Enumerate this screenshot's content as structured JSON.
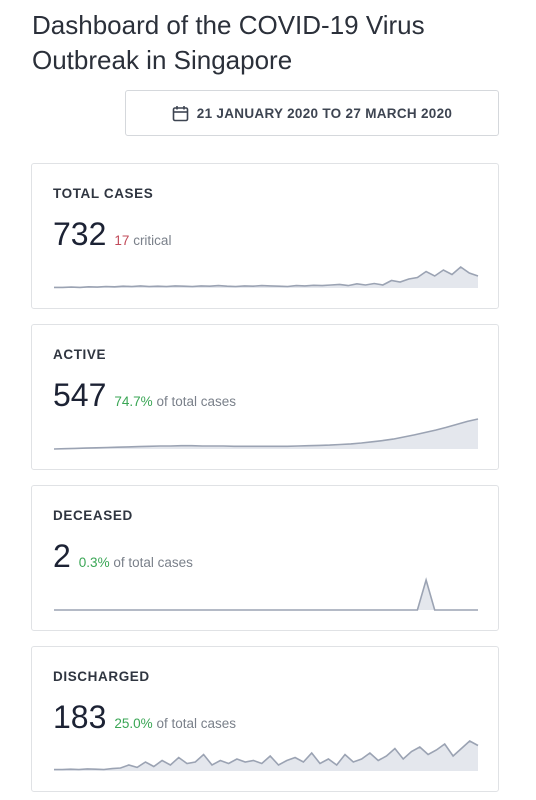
{
  "page": {
    "title": "Dashboard of the COVID-19 Virus Outbreak in Singapore"
  },
  "date_range": {
    "icon": "calendar-icon",
    "label": "21 JANUARY 2020 TO 27 MARCH 2020"
  },
  "cards": {
    "total": {
      "label": "TOTAL CASES",
      "value": "732",
      "sub_highlight": "17",
      "sub_text": "critical",
      "trend": [
        0.02,
        0.02,
        0.03,
        0.02,
        0.04,
        0.03,
        0.05,
        0.04,
        0.06,
        0.05,
        0.07,
        0.05,
        0.06,
        0.05,
        0.07,
        0.06,
        0.05,
        0.07,
        0.06,
        0.08,
        0.06,
        0.05,
        0.07,
        0.06,
        0.08,
        0.07,
        0.06,
        0.05,
        0.08,
        0.07,
        0.09,
        0.08,
        0.1,
        0.12,
        0.08,
        0.14,
        0.1,
        0.15,
        0.1,
        0.25,
        0.2,
        0.3,
        0.35,
        0.55,
        0.4,
        0.6,
        0.45,
        0.7,
        0.5,
        0.4
      ]
    },
    "active": {
      "label": "ACTIVE",
      "value": "547",
      "sub_highlight": "74.7%",
      "sub_text": "of total cases",
      "trend": [
        0.0,
        0.01,
        0.02,
        0.03,
        0.04,
        0.05,
        0.06,
        0.07,
        0.08,
        0.09,
        0.1,
        0.1,
        0.11,
        0.11,
        0.1,
        0.1,
        0.1,
        0.09,
        0.09,
        0.09,
        0.09,
        0.09,
        0.09,
        0.1,
        0.11,
        0.12,
        0.13,
        0.15,
        0.17,
        0.2,
        0.24,
        0.28,
        0.33,
        0.4,
        0.47,
        0.55,
        0.63,
        0.72,
        0.82,
        0.92,
        1.0
      ]
    },
    "deceased": {
      "label": "DECEASED",
      "value": "2",
      "sub_highlight": "0.3%",
      "sub_text": "of total cases",
      "trend": [
        0,
        0,
        0,
        0,
        0,
        0,
        0,
        0,
        0,
        0,
        0,
        0,
        0,
        0,
        0,
        0,
        0,
        0,
        0,
        0,
        0,
        0,
        0,
        0,
        0,
        0,
        0,
        0,
        0,
        0,
        0,
        0,
        0,
        0,
        0,
        0,
        0,
        0,
        0,
        0,
        0,
        0,
        0,
        1,
        0,
        0,
        0,
        0,
        0,
        0
      ]
    },
    "discharged": {
      "label": "DISCHARGED",
      "value": "183",
      "sub_highlight": "25.0%",
      "sub_text": "of total cases",
      "trend": [
        0.05,
        0.05,
        0.06,
        0.05,
        0.07,
        0.06,
        0.05,
        0.08,
        0.1,
        0.2,
        0.12,
        0.3,
        0.15,
        0.35,
        0.2,
        0.45,
        0.25,
        0.3,
        0.55,
        0.2,
        0.35,
        0.25,
        0.4,
        0.3,
        0.35,
        0.25,
        0.5,
        0.2,
        0.35,
        0.45,
        0.3,
        0.6,
        0.25,
        0.4,
        0.2,
        0.55,
        0.3,
        0.4,
        0.6,
        0.35,
        0.5,
        0.75,
        0.4,
        0.65,
        0.8,
        0.55,
        0.7,
        0.9,
        0.5,
        0.75,
        1.0,
        0.85
      ]
    }
  },
  "colors": {
    "line": "#9ba3b3",
    "fill": "#e4e7ed",
    "green": "#3aa655",
    "red": "#c24b5a"
  }
}
